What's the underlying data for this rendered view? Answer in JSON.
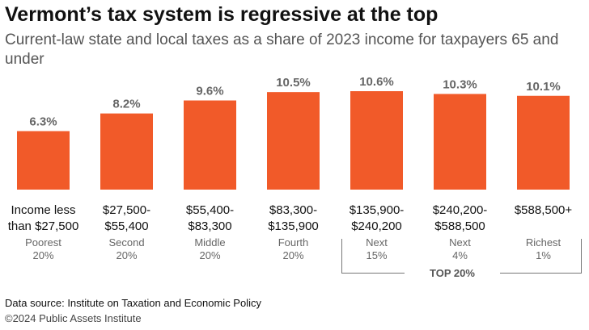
{
  "title": "Vermont’s tax system is regressive at the top",
  "subtitle": "Current-law state and local taxes as a share of 2023 income for taxpayers 65 and under",
  "chart_data": {
    "type": "bar",
    "unit": "%",
    "values": [
      6.3,
      8.2,
      9.6,
      10.5,
      10.6,
      10.3,
      10.1
    ],
    "value_labels": [
      "6.3%",
      "8.2%",
      "9.6%",
      "10.5%",
      "10.6%",
      "10.3%",
      "10.1%"
    ],
    "categories": [
      {
        "range": "Income less\nthan $27,500",
        "group": "Poorest\n20%"
      },
      {
        "range": "$27,500-\n$55,400",
        "group": "Second\n20%"
      },
      {
        "range": "$55,400-\n$83,300",
        "group": "Middle\n20%"
      },
      {
        "range": "$83,300-\n$135,900",
        "group": "Fourth\n20%"
      },
      {
        "range": "$135,900-\n$240,200",
        "group": "Next\n15%"
      },
      {
        "range": "$240,200-\n$588,500",
        "group": "Next\n4%"
      },
      {
        "range": "$588,500+",
        "group": "Richest\n1%"
      }
    ],
    "bracket_label": "TOP 20%",
    "bar_color": "#f15a29",
    "label_color": "#666666",
    "grid": false,
    "ylim": [
      0,
      12
    ]
  },
  "source": "Data source: Institute on Taxation and Economic Policy",
  "copyright": "©2024 Public Assets Institute"
}
